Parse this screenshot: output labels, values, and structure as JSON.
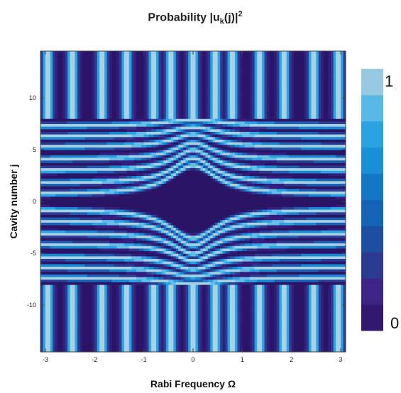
{
  "chart_data": {
    "type": "heatmap",
    "title": {
      "prefix": "Probability |u",
      "subscript": "k",
      "middle": "(j)|",
      "superscript": "2"
    },
    "xlabel": "Rabi Frequency Ω",
    "ylabel": "Cavity number j",
    "xlim": [
      -3.1,
      3.1
    ],
    "ylim": [
      -14.5,
      14.5
    ],
    "x_ticks": [
      -3,
      -2,
      -1,
      0,
      1,
      2,
      3
    ],
    "x_tick_labels": [
      "-3",
      "-2",
      "-1",
      "0",
      "1",
      "2",
      "3"
    ],
    "y_ticks": [
      -10,
      -5,
      0,
      5,
      10
    ],
    "y_tick_labels": [
      "-10",
      "-5",
      "0",
      "5",
      "10"
    ],
    "inner_region_y": [
      -8,
      8
    ],
    "outer_stripe_positions_x": [
      -2.95,
      -2.45,
      -1.85,
      -1.35,
      -0.8,
      -0.45,
      0.0,
      0.45,
      0.8,
      1.35,
      1.85,
      2.45,
      2.95
    ],
    "inner_bands": [
      {
        "y0": 0.7,
        "k": 3.0,
        "w": 2.8
      },
      {
        "y0": -0.7,
        "k": 3.0,
        "w": 2.8
      },
      {
        "y0": 1.8,
        "k": 4.0,
        "w": 2.4
      },
      {
        "y0": -1.8,
        "k": 4.0,
        "w": 2.4
      },
      {
        "y0": 3.0,
        "k": 4.5,
        "w": 2.0
      },
      {
        "y0": -3.0,
        "k": 4.5,
        "w": 2.0
      },
      {
        "y0": 4.1,
        "k": 4.5,
        "w": 1.6
      },
      {
        "y0": -4.1,
        "k": 4.5,
        "w": 1.6
      },
      {
        "y0": 5.3,
        "k": 4.0,
        "w": 1.2
      },
      {
        "y0": -5.3,
        "k": 4.0,
        "w": 1.2
      },
      {
        "y0": 6.3,
        "k": 3.0,
        "w": 0.9
      },
      {
        "y0": -6.3,
        "k": 3.0,
        "w": 0.9
      },
      {
        "y0": 7.3,
        "k": 2.0,
        "w": 0.6
      },
      {
        "y0": -7.3,
        "k": 2.0,
        "w": 0.6
      }
    ],
    "colorbar": {
      "min_label": "0",
      "max_label": "1",
      "colors": [
        "#32186e",
        "#3c2584",
        "#2a3b90",
        "#1d4fa0",
        "#1463b4",
        "#1278c6",
        "#1a8ed6",
        "#2aa3e0",
        "#58b8e6",
        "#96c9e2"
      ]
    }
  }
}
